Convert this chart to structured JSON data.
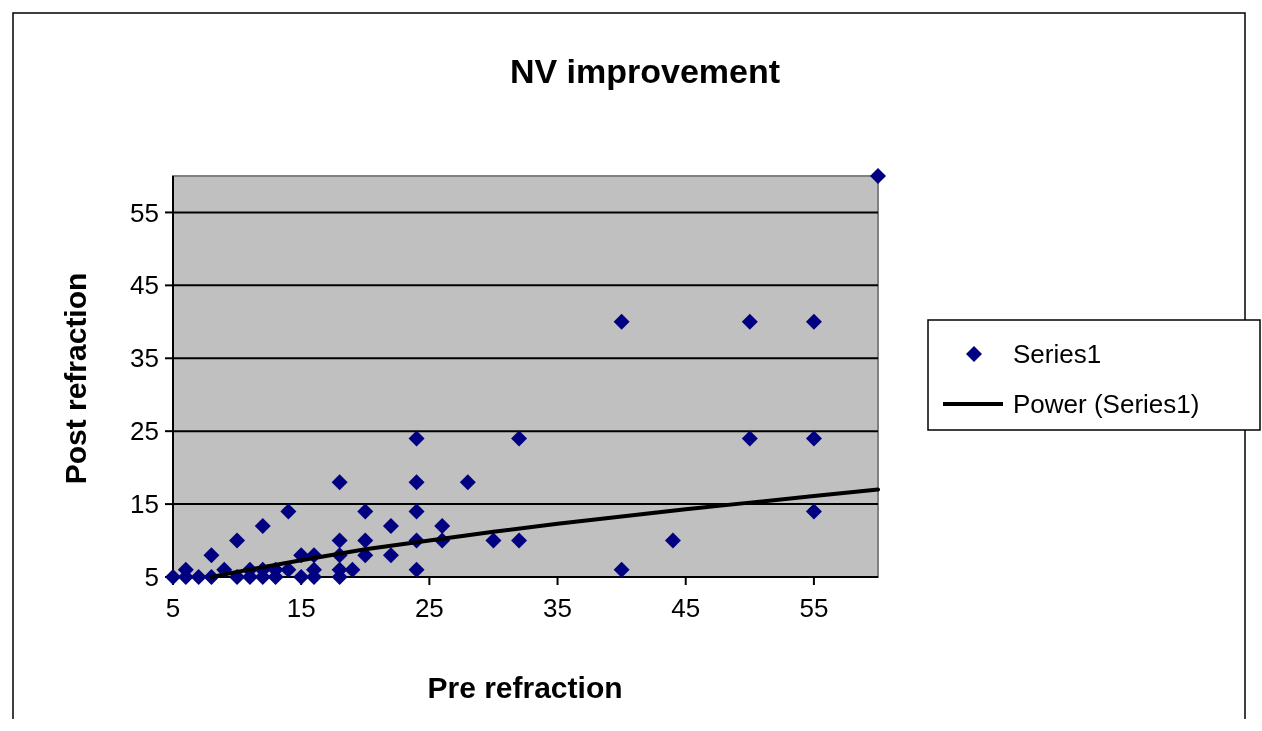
{
  "chart_data": {
    "type": "scatter",
    "title": "NV improvement",
    "xlabel": "Pre refraction",
    "ylabel": "Post refraction",
    "xlim": [
      5,
      60
    ],
    "ylim": [
      5,
      60
    ],
    "xticks": [
      5,
      15,
      25,
      35,
      45,
      55
    ],
    "yticks": [
      5,
      15,
      25,
      35,
      45,
      55
    ],
    "grid": "y",
    "legend": "right",
    "marker": "diamond",
    "series": [
      {
        "name": "Series1",
        "color": "#000080",
        "x": [
          5,
          6,
          6,
          7,
          8,
          8,
          9,
          10,
          10,
          11,
          11,
          12,
          12,
          12,
          13,
          13,
          14,
          14,
          15,
          15,
          16,
          16,
          16,
          18,
          18,
          18,
          18,
          18,
          19,
          20,
          20,
          20,
          22,
          22,
          24,
          24,
          24,
          24,
          24,
          26,
          26,
          28,
          30,
          32,
          32,
          40,
          40,
          44,
          50,
          50,
          55,
          55,
          55,
          60
        ],
        "values": [
          5,
          5,
          6,
          5,
          5,
          8,
          6,
          5,
          10,
          5,
          6,
          5,
          6,
          12,
          5,
          6,
          6,
          14,
          5,
          8,
          5,
          6,
          8,
          5,
          6,
          8,
          10,
          18,
          6,
          8,
          10,
          14,
          8,
          12,
          6,
          10,
          14,
          18,
          24,
          10,
          12,
          18,
          10,
          10,
          24,
          6,
          40,
          10,
          24,
          40,
          14,
          24,
          40,
          60
        ]
      },
      {
        "name": "Power (Series1)",
        "color": "#000000",
        "type": "line",
        "marker": "none",
        "x": [
          8,
          10,
          15,
          20,
          25,
          30,
          35,
          40,
          45,
          50,
          55,
          60
        ],
        "values": [
          5,
          5.7,
          7.3,
          8.8,
          10,
          11.2,
          12.3,
          13.3,
          14.3,
          15.2,
          16.1,
          17
        ]
      }
    ]
  }
}
